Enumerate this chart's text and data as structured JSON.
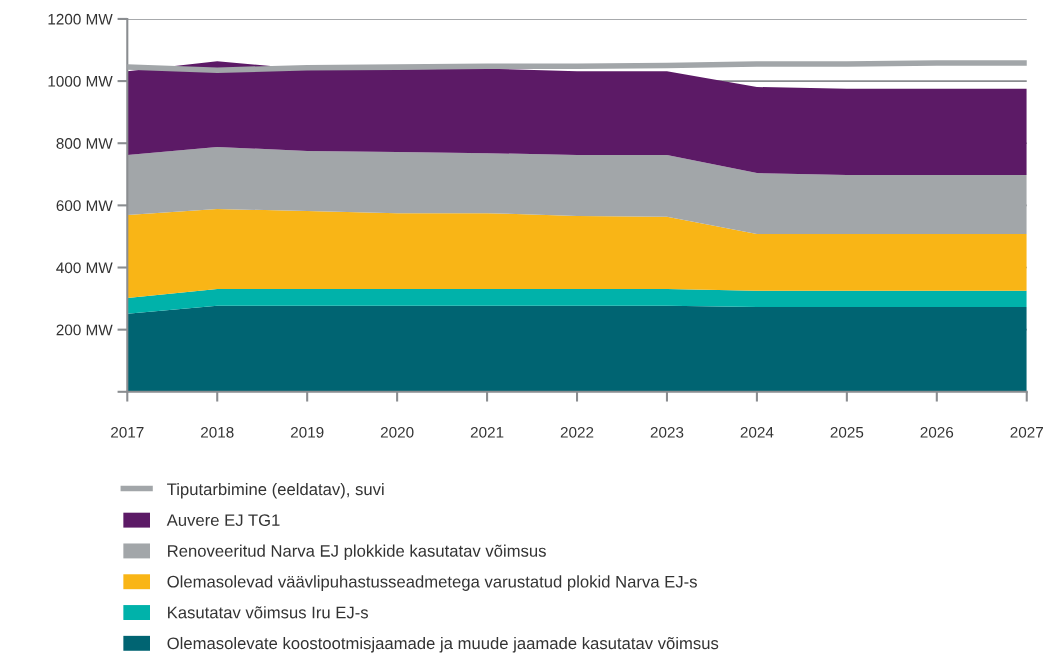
{
  "chart_data": {
    "type": "area",
    "stacked": true,
    "x": [
      2017,
      2018,
      2019,
      2020,
      2021,
      2022,
      2023,
      2024,
      2025,
      2026,
      2027
    ],
    "series": [
      {
        "name": "Olemasolevate koostootmisjaamade ja muude jaamade kasutatav võimsus",
        "color": "#006472",
        "values": [
          251,
          277,
          277,
          277,
          277,
          277,
          277,
          273,
          273,
          273,
          273
        ]
      },
      {
        "name": "Kasutatav võimsus Iru EJ-s",
        "color": "#00b2aa",
        "values": [
          51,
          54,
          54,
          54,
          54,
          54,
          54,
          52,
          52,
          52,
          52
        ]
      },
      {
        "name": "Olemasolevad väävlipuhastusseadmetega varustatud plokid Narva EJ-s",
        "color": "#f9b516",
        "values": [
          267,
          257,
          251,
          244,
          244,
          235,
          232,
          183,
          183,
          183,
          183
        ]
      },
      {
        "name": "Renoveeritud Narva EJ plokkide kasutatav võimsus",
        "color": "#a2a6a9",
        "values": [
          193,
          200,
          193,
          197,
          193,
          196,
          199,
          196,
          190,
          190,
          190
        ]
      },
      {
        "name": "Auvere EJ TG1",
        "color": "#5c1a66",
        "values": [
          270,
          276,
          263,
          266,
          272,
          270,
          270,
          277,
          277,
          277,
          277
        ]
      },
      {
        "name": "Tiputarbimine (eeldatav), suvi",
        "type": "line",
        "color": "#a2a6a9",
        "values": [
          1045,
          1035,
          1043,
          1045,
          1048,
          1048,
          1050,
          1055,
          1055,
          1058,
          1058
        ]
      }
    ],
    "xlim": [
      2017,
      2027
    ],
    "xticks": [
      2017,
      2018,
      2019,
      2020,
      2021,
      2022,
      2023,
      2024,
      2025,
      2026,
      2027
    ],
    "ylim": [
      0,
      1200
    ],
    "yticks": [
      {
        "value": 0,
        "label": null
      },
      {
        "value": 200,
        "label": "200 MW"
      },
      {
        "value": 400,
        "label": "400 MW"
      },
      {
        "value": 600,
        "label": "600 MW"
      },
      {
        "value": 800,
        "label": "800 MW"
      },
      {
        "value": 1000,
        "label": "1000 MW"
      },
      {
        "value": 1200,
        "label": "1200 MW"
      }
    ],
    "grid": "y",
    "legend": "bottom"
  }
}
